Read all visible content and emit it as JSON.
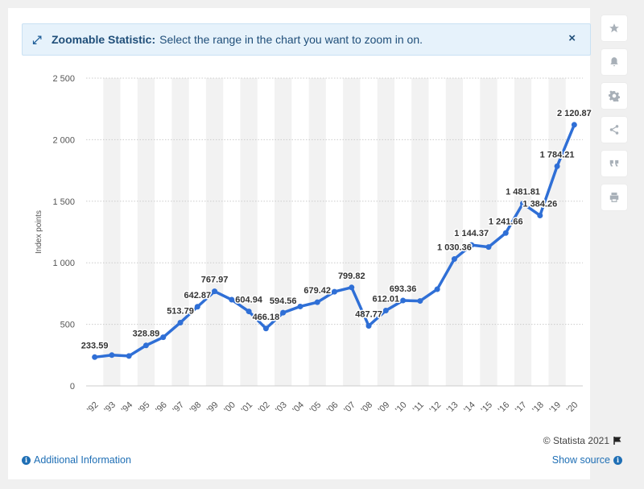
{
  "banner": {
    "title": "Zoomable Statistic:",
    "message": "Select the range in the chart you want to zoom in on.",
    "close_label": "×"
  },
  "toolbar": {
    "items": [
      {
        "name": "star-icon"
      },
      {
        "name": "bell-icon"
      },
      {
        "name": "gear-icon"
      },
      {
        "name": "share-icon"
      },
      {
        "name": "quote-icon"
      },
      {
        "name": "print-icon"
      }
    ]
  },
  "footer": {
    "credit": "© Statista 2021",
    "additional_info": "Additional Information",
    "show_source": "Show source"
  },
  "colors": {
    "line": "#2f6fd6",
    "band": "#f2f2f2",
    "grid": "#cccccc",
    "text": "#333333",
    "link": "#1f6fb5"
  },
  "chart_data": {
    "type": "line",
    "ylabel": "Index points",
    "ylim": [
      0,
      2500
    ],
    "yticks": [
      "0",
      "500",
      "1 000",
      "1 500",
      "2 000",
      "2 500"
    ],
    "categories": [
      "'92",
      "'93",
      "'94",
      "'95",
      "'96",
      "'97",
      "'98",
      "'99",
      "'00",
      "'01",
      "'02",
      "'03",
      "'04",
      "'05",
      "'06",
      "'07",
      "'08",
      "'09",
      "'10",
      "'11",
      "'12",
      "'13",
      "'14",
      "'15",
      "'16",
      "'17",
      "'18",
      "'19",
      "'20"
    ],
    "values": [
      233.59,
      250,
      243,
      328.89,
      395,
      513.79,
      642.87,
      767.97,
      700,
      604.94,
      466.18,
      594.56,
      645,
      679.42,
      765,
      799.82,
      487.77,
      612.01,
      693.36,
      690,
      785,
      1030.36,
      1144.37,
      1128,
      1241.66,
      1481.81,
      1384.26,
      1784.21,
      2120.87
    ],
    "labels": [
      "233.59",
      "",
      "",
      "328.89",
      "",
      "513.79",
      "642.87",
      "767.97",
      "",
      "604.94",
      "466.18",
      "594.56",
      "",
      "679.42",
      "",
      "799.82",
      "487.77",
      "612.01",
      "693.36",
      "",
      "",
      "1 030.36",
      "1 144.37",
      "",
      "1 241.66",
      "1 481.81",
      "1 384.26",
      "1 784.21",
      "2 120.87"
    ],
    "grid": true,
    "legend": "none"
  }
}
